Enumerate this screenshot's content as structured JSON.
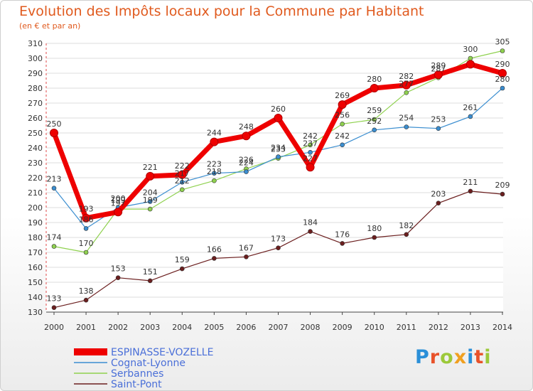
{
  "title": "Evolution des Impôts locaux pour la Commune par Habitant",
  "subtitle": "(en € et par an)",
  "logo": {
    "text": "Proxiti",
    "letter_colors": [
      "#2a8fd8",
      "#e8522a",
      "#9cc93a",
      "#f0a020",
      "#2a8fd8",
      "#e8522a",
      "#9cc93a"
    ]
  },
  "chart_data": {
    "type": "line",
    "x": [
      "2000",
      "2001",
      "2002",
      "2003",
      "2004",
      "2005",
      "2006",
      "2007",
      "2008",
      "2009",
      "2010",
      "2011",
      "2012",
      "2013",
      "2014"
    ],
    "ylim": [
      130,
      310
    ],
    "yticks": [
      130,
      140,
      150,
      160,
      170,
      180,
      190,
      200,
      210,
      220,
      230,
      240,
      250,
      260,
      270,
      280,
      290,
      300,
      310
    ],
    "grid": "horizontal",
    "legend_position": "bottom-left",
    "series": [
      {
        "name": "Saint-Pont",
        "color": "#6b1e1e",
        "width": 1.2,
        "values": [
          133,
          138,
          153,
          151,
          159,
          166,
          167,
          173,
          184,
          176,
          180,
          182,
          203,
          211,
          209
        ]
      },
      {
        "name": "Serbannes",
        "color": "#8fd14f",
        "width": 1.2,
        "values": [
          174,
          170,
          199,
          199,
          212,
          218,
          226,
          233,
          242,
          256,
          259,
          277,
          287,
          300,
          305
        ]
      },
      {
        "name": "Cognat-Lyonne",
        "color": "#3b8ed0",
        "width": 1.2,
        "values": [
          213,
          186,
          200,
          204,
          217,
          223,
          224,
          234,
          237,
          242,
          252,
          254,
          253,
          261,
          280
        ]
      },
      {
        "name": "ESPINASSE-VOZELLE",
        "color": "#ee0000",
        "width": 7,
        "values": [
          250,
          193,
          197,
          221,
          222,
          244,
          248,
          260,
          227,
          269,
          280,
          282,
          289,
          296,
          290
        ],
        "labels": [
          250,
          193,
          197,
          221,
          222,
          244,
          248,
          260,
          227,
          269,
          280,
          282,
          289,
          null,
          290
        ]
      }
    ]
  }
}
